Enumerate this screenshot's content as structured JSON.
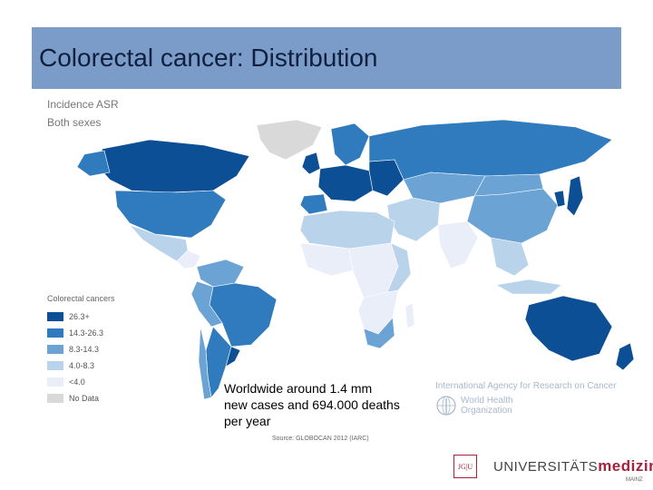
{
  "slide": {
    "title": "Colorectal cancer: Distribution"
  },
  "map": {
    "header_line1": "Incidence ASR",
    "header_line2": "Both sexes",
    "legend": {
      "title": "Colorectal cancers",
      "items": [
        {
          "label": "26.3+",
          "color": "#0c4f95"
        },
        {
          "label": "14.3-26.3",
          "color": "#2f7bbe"
        },
        {
          "label": "8.3-14.3",
          "color": "#6ba3d5"
        },
        {
          "label": "4.0-8.3",
          "color": "#b8d3ea"
        },
        {
          "label": "<4.0",
          "color": "#e9eef8"
        },
        {
          "label": "No Data",
          "color": "#d9d9d9"
        }
      ]
    },
    "source": "Source: GLOBOCAN 2012 (IARC)"
  },
  "caption": {
    "line1": "Worldwide around 1.4 mm",
    "line2": "new cases and 694.000 deaths",
    "line3": "per year"
  },
  "logos": {
    "iarc": "International Agency for Research on Cancer",
    "who_line1": "World Health",
    "who_line2": "Organization",
    "uni_mark": "JG|U",
    "uni_prefix": "UNIVERSITÄTS",
    "uni_suffix": "medizin.",
    "uni_city": "MAINZ"
  }
}
